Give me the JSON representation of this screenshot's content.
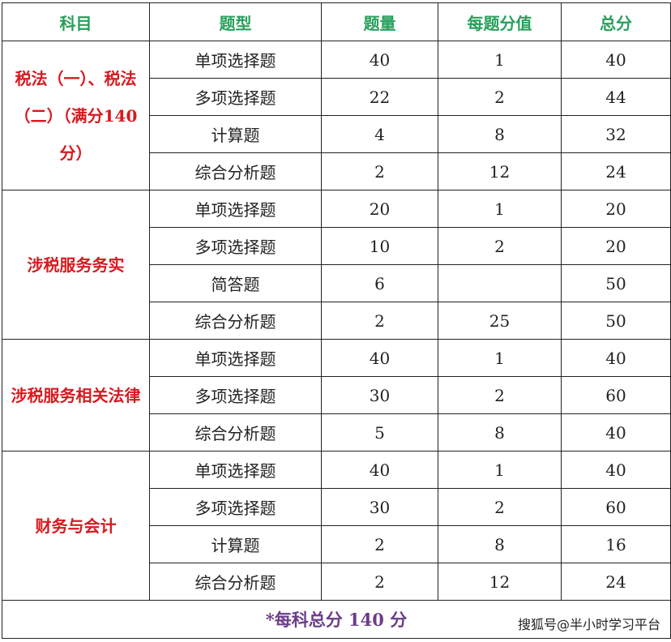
{
  "headers": [
    "科目",
    "题型",
    "题量",
    "每题分值",
    "总分"
  ],
  "groups": [
    {
      "subject": "税法（一）、税法（二）（满分140分）",
      "rows": [
        [
          "单项选择题",
          "40",
          "1",
          "40"
        ],
        [
          "多项选择题",
          "22",
          "2",
          "44"
        ],
        [
          "计算题",
          "4",
          "8",
          "32"
        ],
        [
          "综合分析题",
          "2",
          "12",
          "24"
        ]
      ]
    },
    {
      "subject": "涉税服务务实",
      "rows": [
        [
          "单项选择题",
          "20",
          "1",
          "20"
        ],
        [
          "多项选择题",
          "10",
          "2",
          "20"
        ],
        [
          "简答题",
          "6",
          "",
          "50"
        ],
        [
          "综合分析题",
          "2",
          "25",
          "50"
        ]
      ]
    },
    {
      "subject": "涉税服务相关法律",
      "rows": [
        [
          "单项选择题",
          "40",
          "1",
          "40"
        ],
        [
          "多项选择题",
          "30",
          "2",
          "60"
        ],
        [
          "综合分析题",
          "5",
          "8",
          "40"
        ]
      ]
    },
    {
      "subject": "财务与会计",
      "rows": [
        [
          "单项选择题",
          "40",
          "1",
          "40"
        ],
        [
          "多项选择题",
          "30",
          "2",
          "60"
        ],
        [
          "计算题",
          "2",
          "8",
          "16"
        ],
        [
          "综合分析题",
          "2",
          "12",
          "24"
        ]
      ]
    }
  ],
  "footer": "*每科总分 140 分",
  "watermark": "搜狐号@半小时学习平台",
  "colors": {
    "header": "#27a05a",
    "subject": "#d8191e",
    "footer": "#6b3d8a"
  }
}
